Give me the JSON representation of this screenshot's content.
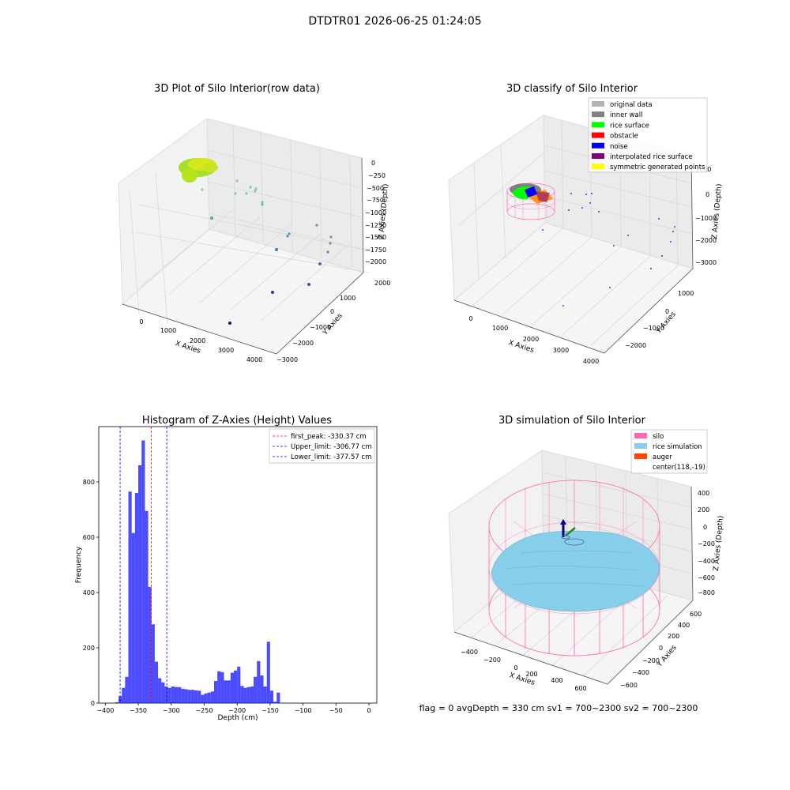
{
  "figure_title": "DTDTR01 2026-06-25 01:24:05",
  "panel_raw": {
    "title": "3D Plot of Silo Interior(row data)",
    "xlabel": "X Axies",
    "ylabel": "Y Axies",
    "zlabel": "Z Axies (Depth)",
    "xticks": [
      "0",
      "1000",
      "2000",
      "3000",
      "4000"
    ],
    "yticks": [
      "2000",
      "1000",
      "0",
      "−1000",
      "−2000",
      "−3000"
    ],
    "zticks": [
      "0",
      "−250",
      "−500",
      "−750",
      "−1000",
      "−1250",
      "−1500",
      "−1750",
      "−2000"
    ]
  },
  "panel_classify": {
    "title": "3D classify of Silo Interior",
    "xlabel": "X Axies",
    "ylabel": "Y Axies",
    "zlabel": "Z Axies (Depth)",
    "xticks": [
      "0",
      "1000",
      "2000",
      "3000",
      "4000"
    ],
    "yticks": [
      "1000",
      "0",
      "−1000",
      "−2000"
    ],
    "zticks": [
      "1000",
      "0",
      "−1000",
      "−2000",
      "−3000"
    ],
    "legend": [
      {
        "label": "original data",
        "color": "#b3b3b3"
      },
      {
        "label": "inner wall",
        "color": "#808080"
      },
      {
        "label": "rice surface",
        "color": "#00ff00"
      },
      {
        "label": "obstacle",
        "color": "#ff0000"
      },
      {
        "label": "noise",
        "color": "#0000ff"
      },
      {
        "label": "interpolated rice surface",
        "color": "#800080"
      },
      {
        "label": "symmetric generated points",
        "color": "#ffff00"
      }
    ]
  },
  "panel_sim": {
    "title": "3D simulation of Silo Interior",
    "xlabel": "X Axies",
    "ylabel": "Y Axies",
    "zlabel": "Z Axies (Depth)",
    "xticks": [
      "−400",
      "−200",
      "0",
      "200",
      "400",
      "600"
    ],
    "yticks": [
      "600",
      "400",
      "200",
      "0",
      "−200",
      "−400",
      "−600"
    ],
    "zticks": [
      "400",
      "200",
      "0",
      "−200",
      "−400",
      "−600",
      "−800"
    ],
    "legend": [
      {
        "label": "silo",
        "color": "#ff69b4"
      },
      {
        "label": "rice simulation",
        "color": "#87ceeb"
      },
      {
        "label": "auger",
        "color": "#ff4500"
      },
      {
        "label": "center(118,-19)",
        "color": ""
      }
    ]
  },
  "status_text": "flag = 0     avgDepth = 330 cm  sv1 = 700~2300  sv2 = 700~2300",
  "colors": {
    "hist": "#0000ff",
    "first_peak": "#ff0000",
    "limits": "#0000ff",
    "silo": "#ff69b4",
    "rice": "#87ceeb"
  },
  "chart_data": {
    "type": "bar",
    "title": "Histogram of Z-Axies (Height) Values",
    "xlabel": "Depth (cm)",
    "ylabel": "Frequency",
    "xlim": [
      -410,
      12
    ],
    "ylim": [
      0,
      1000
    ],
    "bin_width": 5,
    "xticks": [
      -400,
      -350,
      -300,
      -250,
      -200,
      -150,
      -100,
      -50,
      0
    ],
    "yticks": [
      0,
      200,
      400,
      600,
      800
    ],
    "bins": [
      {
        "x": -385,
        "value": 3
      },
      {
        "x": -380,
        "value": 25
      },
      {
        "x": -375,
        "value": 55
      },
      {
        "x": -370,
        "value": 95
      },
      {
        "x": -365,
        "value": 765
      },
      {
        "x": -360,
        "value": 615
      },
      {
        "x": -355,
        "value": 760
      },
      {
        "x": -350,
        "value": 860
      },
      {
        "x": -345,
        "value": 950
      },
      {
        "x": -340,
        "value": 695
      },
      {
        "x": -335,
        "value": 420
      },
      {
        "x": -330,
        "value": 285
      },
      {
        "x": -325,
        "value": 150
      },
      {
        "x": -320,
        "value": 90
      },
      {
        "x": -315,
        "value": 75
      },
      {
        "x": -310,
        "value": 60
      },
      {
        "x": -305,
        "value": 55
      },
      {
        "x": -300,
        "value": 60
      },
      {
        "x": -295,
        "value": 58
      },
      {
        "x": -290,
        "value": 58
      },
      {
        "x": -285,
        "value": 52
      },
      {
        "x": -280,
        "value": 50
      },
      {
        "x": -275,
        "value": 48
      },
      {
        "x": -270,
        "value": 48
      },
      {
        "x": -265,
        "value": 46
      },
      {
        "x": -260,
        "value": 45
      },
      {
        "x": -255,
        "value": 30
      },
      {
        "x": -250,
        "value": 35
      },
      {
        "x": -245,
        "value": 38
      },
      {
        "x": -240,
        "value": 42
      },
      {
        "x": -235,
        "value": 80
      },
      {
        "x": -230,
        "value": 115
      },
      {
        "x": -225,
        "value": 112
      },
      {
        "x": -220,
        "value": 82
      },
      {
        "x": -215,
        "value": 82
      },
      {
        "x": -210,
        "value": 110
      },
      {
        "x": -205,
        "value": 118
      },
      {
        "x": -200,
        "value": 132
      },
      {
        "x": -195,
        "value": 62
      },
      {
        "x": -190,
        "value": 55
      },
      {
        "x": -185,
        "value": 58
      },
      {
        "x": -180,
        "value": 60
      },
      {
        "x": -175,
        "value": 95
      },
      {
        "x": -170,
        "value": 152
      },
      {
        "x": -165,
        "value": 100
      },
      {
        "x": -160,
        "value": 60
      },
      {
        "x": -155,
        "value": 222
      },
      {
        "x": -150,
        "value": 45
      },
      {
        "x": -145,
        "value": 5
      },
      {
        "x": -140,
        "value": 38
      }
    ],
    "vlines": [
      {
        "label": "first_peak: -330.37 cm",
        "x": -330.37,
        "color": "#ff0000"
      },
      {
        "label": "Upper_limit: -306.77 cm",
        "x": -306.77,
        "color": "#0000ff"
      },
      {
        "label": "Lower_limit: -377.57 cm",
        "x": -377.57,
        "color": "#0000ff"
      }
    ]
  }
}
